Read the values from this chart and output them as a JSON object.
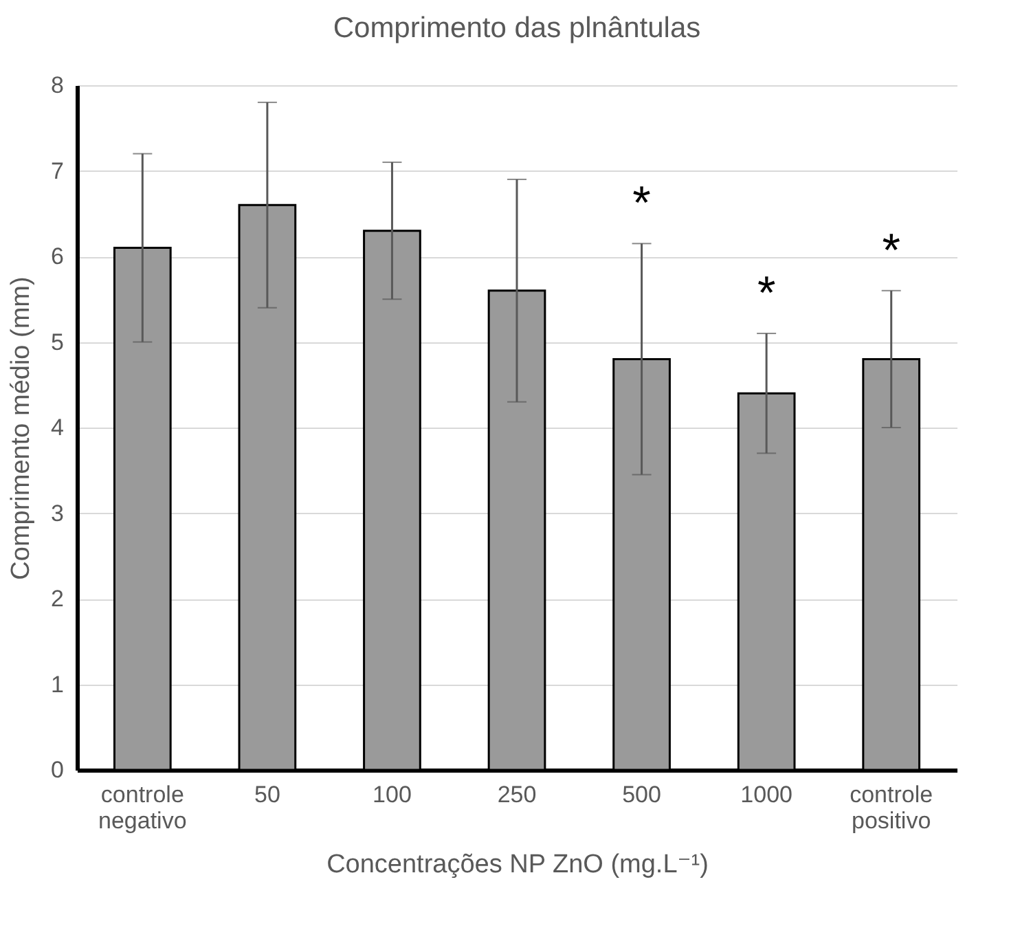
{
  "chart_data": {
    "type": "bar",
    "title": "Comprimento das plnântulas",
    "xlabel": "Concentrações NP ZnO (mg.L⁻¹)",
    "ylabel": "Comprimento médio (mm)",
    "categories": [
      "controle negativo",
      "50",
      "100",
      "250",
      "500",
      "1000",
      "controle positivo"
    ],
    "values": [
      6.1,
      6.6,
      6.3,
      5.6,
      4.8,
      4.4,
      4.8
    ],
    "errors": [
      1.1,
      1.2,
      0.8,
      1.3,
      1.35,
      0.7,
      0.8
    ],
    "color": "#9a9a9a",
    "ylim": [
      0,
      8
    ],
    "yticks": [
      0,
      1,
      2,
      3,
      4,
      5,
      6,
      7,
      8
    ],
    "grid": "y",
    "annotations": [
      "*",
      "*",
      "*"
    ]
  }
}
